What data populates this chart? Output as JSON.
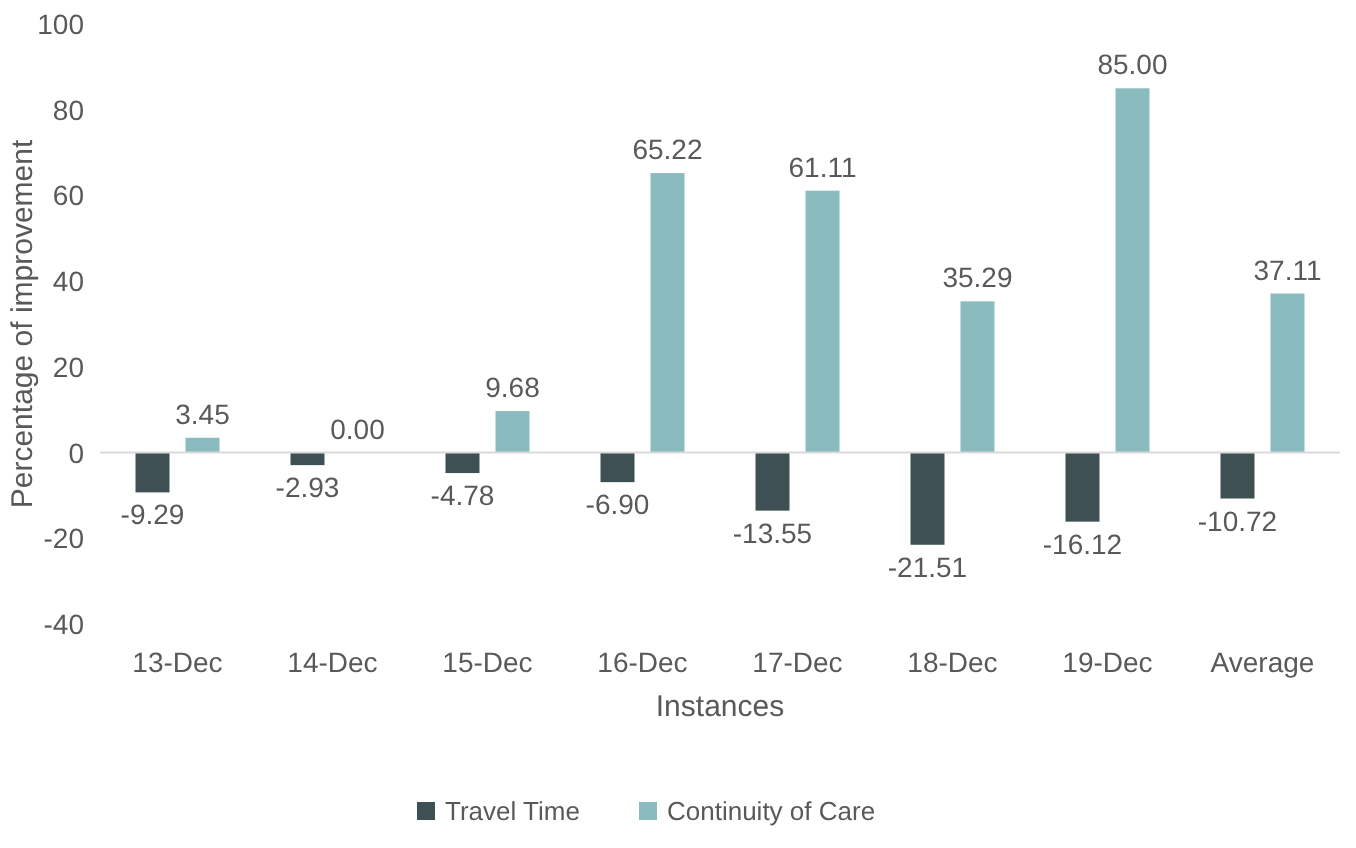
{
  "chart_data": {
    "type": "bar",
    "xlabel": "Instances",
    "ylabel": "Percentage of improvement",
    "categories": [
      "13-Dec",
      "14-Dec",
      "15-Dec",
      "16-Dec",
      "17-Dec",
      "18-Dec",
      "19-Dec",
      "Average"
    ],
    "series": [
      {
        "name": "Travel Time",
        "color": "#3e5054",
        "values": [
          -9.29,
          -2.93,
          -4.78,
          -6.9,
          -13.55,
          -21.51,
          -16.12,
          -10.72
        ],
        "value_labels": [
          "-9.29",
          "-2.93",
          "-4.78",
          "-6.90",
          "-13.55",
          "-21.51",
          "-16.12",
          "-10.72"
        ]
      },
      {
        "name": "Continuity of Care",
        "color": "#8abbbf",
        "values": [
          3.45,
          0,
          9.68,
          65.22,
          61.11,
          35.29,
          85,
          37.11
        ],
        "value_labels": [
          "3.45",
          "0.00",
          "9.68",
          "65.22",
          "61.11",
          "35.29",
          "85.00",
          "37.11"
        ]
      }
    ],
    "ylim": [
      -40,
      100
    ],
    "yticks": [
      -40,
      -20,
      0,
      20,
      40,
      60,
      80,
      100
    ],
    "legend": "bottom"
  }
}
